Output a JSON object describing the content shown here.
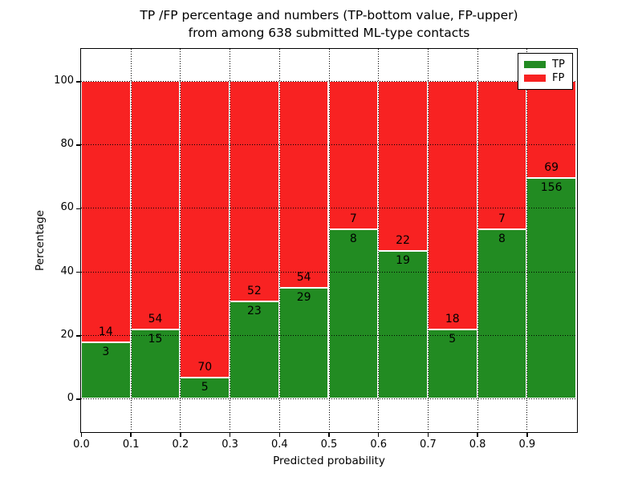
{
  "chart_data": {
    "type": "bar",
    "stacked": true,
    "normalized": "each bar stacked to 100 percent; segment counts shown as labels (TP count below boundary, FP count above)",
    "title": "TP /FP percentage and numbers (TP-bottom value, FP-upper)",
    "subtitle": "from among 638 submitted ML-type contacts",
    "xlabel": "Predicted probability",
    "ylabel": "Percentage",
    "x_tick_labels": [
      "0.0",
      "0.1",
      "0.2",
      "0.3",
      "0.4",
      "0.5",
      "0.6",
      "0.7",
      "0.8",
      "0.9"
    ],
    "y_ticks": [
      0,
      20,
      40,
      60,
      80,
      100
    ],
    "xlim": [
      0.0,
      1.0
    ],
    "ylim": [
      -11,
      110
    ],
    "bin_width": 0.1,
    "bin_starts": [
      0.0,
      0.1,
      0.2,
      0.3,
      0.4,
      0.5,
      0.6,
      0.7,
      0.8,
      0.9
    ],
    "series": [
      {
        "name": "TP",
        "color": "#228b22",
        "values": [
          3,
          15,
          5,
          23,
          29,
          8,
          19,
          5,
          8,
          156
        ]
      },
      {
        "name": "FP",
        "color": "#f82222",
        "values": [
          14,
          54,
          70,
          52,
          54,
          7,
          22,
          18,
          7,
          69
        ]
      }
    ],
    "legend": {
      "position": "upper right",
      "entries": [
        "TP",
        "FP"
      ]
    },
    "grid": {
      "style": "dotted",
      "color": "#000000"
    },
    "bar_edge_color": "#ffffff",
    "background_color": "#ffffff",
    "text_color": "#000000"
  }
}
